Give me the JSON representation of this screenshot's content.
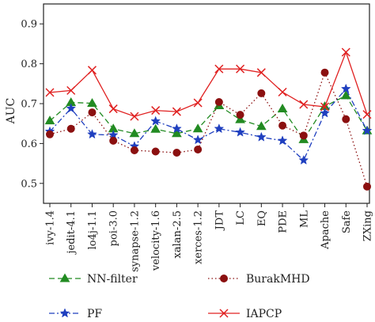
{
  "chart_data": {
    "type": "line",
    "title": "",
    "xlabel": "",
    "ylabel": "AUC",
    "ylim": [
      0.45,
      0.95
    ],
    "yticks": [
      "0.5",
      "0.6",
      "0.7",
      "0.8",
      "0.9"
    ],
    "categories": [
      "ivy-1.4",
      "jedit-4.1",
      "lo4j-1.1",
      "poi-3.0",
      "synapse-1.2",
      "velocity-1.6",
      "xalan-2.5",
      "xerces-1.2",
      "JDT",
      "LC",
      "EQ",
      "PDE",
      "ML",
      "Apache",
      "Safe",
      "ZXing"
    ],
    "grid": false,
    "legend_position": "bottom",
    "series": [
      {
        "name": "NN-filter",
        "color": "#228b22",
        "style": "dashed",
        "marker": "triangle",
        "values": [
          0.657,
          0.703,
          0.701,
          0.637,
          0.625,
          0.636,
          0.625,
          0.637,
          0.695,
          0.66,
          0.643,
          0.687,
          0.61,
          0.693,
          0.72,
          0.632
        ]
      },
      {
        "name": "PF",
        "color": "#1f3fbf",
        "style": "dashdot",
        "marker": "star",
        "values": [
          0.63,
          0.688,
          0.623,
          0.621,
          0.593,
          0.656,
          0.637,
          0.609,
          0.637,
          0.628,
          0.616,
          0.607,
          0.558,
          0.676,
          0.737,
          0.632
        ]
      },
      {
        "name": "BurakMHD",
        "color": "#8b1010",
        "style": "dotted",
        "marker": "circle",
        "values": [
          0.623,
          0.637,
          0.678,
          0.607,
          0.583,
          0.58,
          0.577,
          0.585,
          0.704,
          0.672,
          0.726,
          0.645,
          0.62,
          0.778,
          0.661,
          0.492
        ]
      },
      {
        "name": "IAPCP",
        "color": "#e02020",
        "style": "solid",
        "marker": "x",
        "values": [
          0.728,
          0.733,
          0.784,
          0.687,
          0.668,
          0.683,
          0.68,
          0.702,
          0.787,
          0.787,
          0.778,
          0.729,
          0.698,
          0.692,
          0.829,
          0.673
        ]
      }
    ]
  }
}
